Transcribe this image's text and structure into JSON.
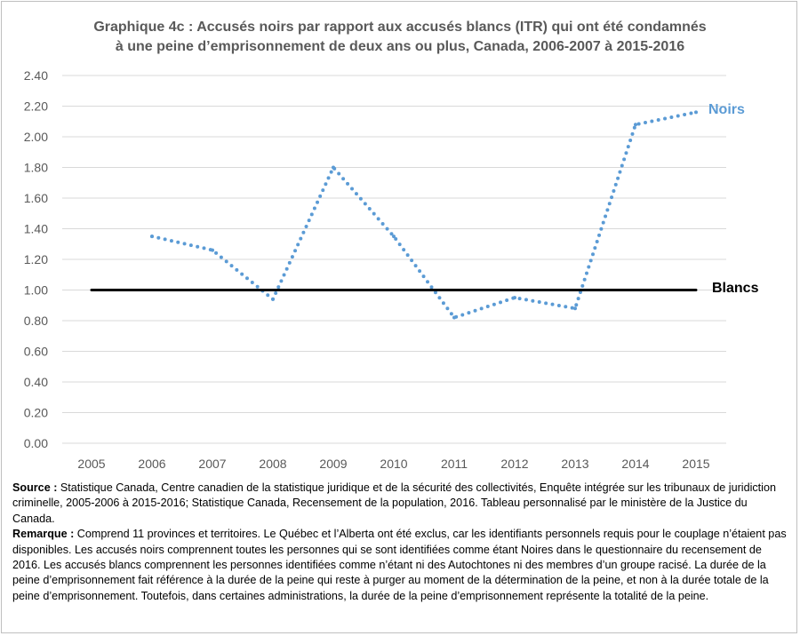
{
  "title": {
    "line1": "Graphique 4c : Accusés noirs par rapport aux accusés blancs (ITR) qui ont été condamnés",
    "line2": "à une peine d’emprisonnement de deux ans ou plus, Canada, 2006-2007 à 2015-2016"
  },
  "colors": {
    "noirs": "#5b9bd5",
    "blancs": "#000000",
    "grid": "#d9d9d9",
    "tick": "#595959"
  },
  "chart_data": {
    "type": "line",
    "x": [
      2005,
      2006,
      2007,
      2008,
      2009,
      2010,
      2011,
      2012,
      2013,
      2014,
      2015
    ],
    "x_tick_labels": [
      "2005",
      "2006",
      "2007",
      "2008",
      "2009",
      "2010",
      "2011",
      "2012",
      "2013",
      "2014",
      "2015"
    ],
    "y_tick_labels": [
      "0.00",
      "0.20",
      "0.40",
      "0.60",
      "0.80",
      "1.00",
      "1.20",
      "1.40",
      "1.60",
      "1.80",
      "2.00",
      "2.20",
      "2.40"
    ],
    "ylim": [
      0,
      2.4
    ],
    "grid": "horizontal",
    "series": [
      {
        "name": "Noirs",
        "style": "dotted",
        "color": "#5b9bd5",
        "x": [
          2006,
          2007,
          2008,
          2009,
          2010,
          2011,
          2012,
          2013,
          2014,
          2015
        ],
        "values": [
          1.35,
          1.26,
          0.94,
          1.8,
          1.35,
          0.82,
          0.95,
          0.88,
          2.08,
          2.16
        ]
      },
      {
        "name": "Blancs",
        "style": "solid",
        "color": "#000000",
        "x": [
          2005,
          2015
        ],
        "values": [
          1.0,
          1.0
        ]
      }
    ]
  },
  "notes": {
    "source_label": "Source :",
    "source_text": " Statistique Canada, Centre canadien de la statistique juridique et de la sécurité des collectivités, Enquête intégrée sur les tribunaux de juridiction criminelle, 2005-2006 à 2015-2016; Statistique Canada, Recensement de la population, 2016. Tableau personnalisé par le ministère de la Justice du Canada.",
    "remark_label": "Remarque :",
    "remark_text": " Comprend 11 provinces et territoires. Le Québec et l’Alberta ont été exclus, car les identifiants personnels requis pour le couplage n’étaient pas disponibles. Les accusés noirs comprennent toutes les personnes qui se sont identifiées comme étant Noires dans le questionnaire du recensement de 2016. Les accusés blancs comprennent les personnes identifiées comme n’étant ni des Autochtones ni des membres d’un groupe racisé. La durée de la peine d’emprisonnement fait référence à la durée de la peine qui reste à purger au moment de la détermination de la peine, et non à la durée totale de la peine d’emprisonnement. Toutefois, dans certaines administrations, la durée de la peine d’emprisonnement représente la totalité de la peine."
  }
}
